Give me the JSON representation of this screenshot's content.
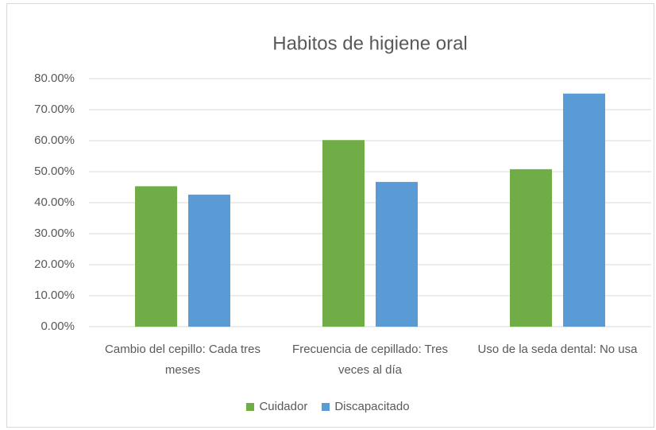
{
  "chart_data": {
    "type": "bar",
    "title": "Habitos de higiene oral",
    "categories": [
      "Cambio del cepillo: Cada tres meses",
      "Frecuencia de cepillado: Tres veces al día",
      "Uso de la seda dental: No usa"
    ],
    "series": [
      {
        "name": "Cuidador",
        "color": "#70ad47",
        "values": [
          45.3,
          60.2,
          50.8
        ]
      },
      {
        "name": "Discapacitado",
        "color": "#5b9bd5",
        "values": [
          42.6,
          46.7,
          75.2
        ]
      }
    ],
    "ylim": [
      0,
      80
    ],
    "yticks": [
      {
        "value": 0,
        "label": "0.00%"
      },
      {
        "value": 10,
        "label": "10.00%"
      },
      {
        "value": 20,
        "label": "20.00%"
      },
      {
        "value": 30,
        "label": "30.00%"
      },
      {
        "value": 40,
        "label": "40.00%"
      },
      {
        "value": 50,
        "label": "50.00%"
      },
      {
        "value": 60,
        "label": "60.00%"
      },
      {
        "value": 70,
        "label": "70.00%"
      },
      {
        "value": 80,
        "label": "80.00%"
      }
    ],
    "grid": true,
    "legend": "bottom"
  }
}
